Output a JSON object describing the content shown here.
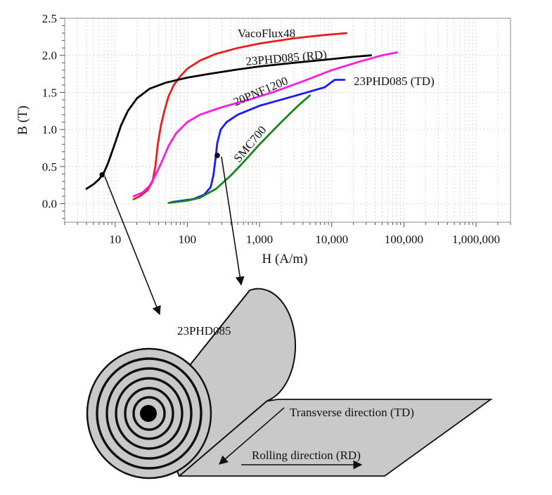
{
  "chart_data": {
    "type": "line",
    "xlabel": "H (A/m)",
    "ylabel": "B (T)",
    "xscale": "log",
    "xlim": [
      2,
      3000000
    ],
    "ylim": [
      -0.25,
      2.5
    ],
    "grid": true,
    "x_tick_labels": [
      "10",
      "100",
      "1,000",
      "10,000",
      "100,000",
      "1,000,000"
    ],
    "x_tick_values": [
      10,
      100,
      1000,
      10000,
      100000,
      1000000
    ],
    "y_tick_labels": [
      "0.0",
      "0.5",
      "1.0",
      "1.5",
      "2.0",
      "2.5"
    ],
    "y_tick_values": [
      0,
      0.5,
      1.0,
      1.5,
      2.0,
      2.5
    ],
    "series": [
      {
        "name": "VacoFlux48",
        "color": "#ee1c1c",
        "points": [
          [
            18,
            0.06
          ],
          [
            22,
            0.1
          ],
          [
            28,
            0.18
          ],
          [
            33,
            0.3
          ],
          [
            36,
            0.5
          ],
          [
            39,
            0.8
          ],
          [
            43,
            1.05
          ],
          [
            48,
            1.25
          ],
          [
            55,
            1.45
          ],
          [
            65,
            1.6
          ],
          [
            80,
            1.72
          ],
          [
            100,
            1.82
          ],
          [
            150,
            1.93
          ],
          [
            250,
            2.02
          ],
          [
            500,
            2.1
          ],
          [
            1000,
            2.16
          ],
          [
            3000,
            2.23
          ],
          [
            7000,
            2.27
          ],
          [
            16000,
            2.3
          ]
        ]
      },
      {
        "name": "23PHD085 (RD)",
        "color": "#000000",
        "points": [
          [
            4,
            0.2
          ],
          [
            5,
            0.26
          ],
          [
            6,
            0.33
          ],
          [
            7,
            0.42
          ],
          [
            8,
            0.55
          ],
          [
            10,
            0.82
          ],
          [
            12,
            1.05
          ],
          [
            15,
            1.25
          ],
          [
            20,
            1.42
          ],
          [
            30,
            1.55
          ],
          [
            50,
            1.63
          ],
          [
            100,
            1.7
          ],
          [
            200,
            1.75
          ],
          [
            500,
            1.81
          ],
          [
            1000,
            1.85
          ],
          [
            3000,
            1.9
          ],
          [
            10000,
            1.95
          ],
          [
            20000,
            1.98
          ],
          [
            35000,
            2.0
          ]
        ]
      },
      {
        "name": "20PNF1200",
        "color": "#ff1ae8",
        "points": [
          [
            18,
            0.1
          ],
          [
            24,
            0.15
          ],
          [
            30,
            0.24
          ],
          [
            36,
            0.38
          ],
          [
            45,
            0.58
          ],
          [
            55,
            0.78
          ],
          [
            70,
            0.95
          ],
          [
            100,
            1.1
          ],
          [
            150,
            1.2
          ],
          [
            300,
            1.3
          ],
          [
            700,
            1.4
          ],
          [
            1500,
            1.5
          ],
          [
            4000,
            1.65
          ],
          [
            10000,
            1.8
          ],
          [
            25000,
            1.92
          ],
          [
            50000,
            2.0
          ],
          [
            80000,
            2.04
          ]
        ]
      },
      {
        "name": "23PHD085 (TD)",
        "color": "#1a1aff",
        "points": [
          [
            60,
            0.02
          ],
          [
            120,
            0.06
          ],
          [
            170,
            0.12
          ],
          [
            210,
            0.22
          ],
          [
            230,
            0.38
          ],
          [
            245,
            0.6
          ],
          [
            260,
            0.82
          ],
          [
            290,
            1.0
          ],
          [
            350,
            1.1
          ],
          [
            500,
            1.2
          ],
          [
            1000,
            1.32
          ],
          [
            3000,
            1.45
          ],
          [
            8000,
            1.57
          ],
          [
            11000,
            1.67
          ],
          [
            15000,
            1.67
          ]
        ]
      },
      {
        "name": "SMC700",
        "color": "#138a13",
        "points": [
          [
            55,
            0.01
          ],
          [
            100,
            0.04
          ],
          [
            150,
            0.08
          ],
          [
            250,
            0.2
          ],
          [
            400,
            0.38
          ],
          [
            600,
            0.56
          ],
          [
            1000,
            0.8
          ],
          [
            2000,
            1.1
          ],
          [
            3500,
            1.33
          ],
          [
            5000,
            1.46
          ]
        ]
      }
    ],
    "annotations": [
      {
        "type": "point",
        "x": 6.6,
        "y": 0.39
      },
      {
        "type": "point",
        "x": 260,
        "y": 0.65
      }
    ]
  },
  "roll": {
    "label": "23PHD085",
    "transverse_label": "Transverse direction (TD)",
    "rolling_label": "Rolling direction (RD)"
  }
}
